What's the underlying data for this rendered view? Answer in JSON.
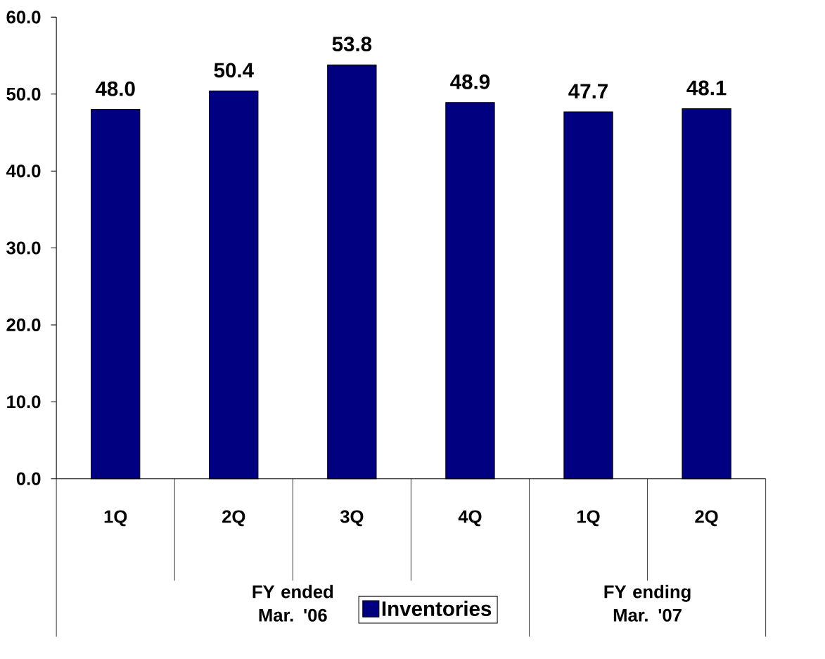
{
  "chart_data": {
    "type": "bar",
    "categories": [
      "1Q",
      "2Q",
      "3Q",
      "4Q",
      "1Q",
      "2Q"
    ],
    "series": [
      {
        "name": "Inventories",
        "color": "#000080",
        "values": [
          48.0,
          50.4,
          53.8,
          48.9,
          47.7,
          48.1
        ],
        "value_labels": [
          "48.0",
          "50.4",
          "53.8",
          "48.9",
          "47.7",
          "48.1"
        ]
      }
    ],
    "ylim": [
      0,
      60
    ],
    "yticks": [
      {
        "value": 0,
        "label": "0.0"
      },
      {
        "value": 10,
        "label": "10.0"
      },
      {
        "value": 20,
        "label": "20.0"
      },
      {
        "value": 30,
        "label": "30.0"
      },
      {
        "value": 40,
        "label": "40.0"
      },
      {
        "value": 50,
        "label": "50.0"
      },
      {
        "value": 60,
        "label": "60.0"
      }
    ],
    "annotations": [
      "FY ended Mar. '06",
      "FY ending Mar. '07"
    ],
    "grid": false,
    "legend": "bottom"
  }
}
